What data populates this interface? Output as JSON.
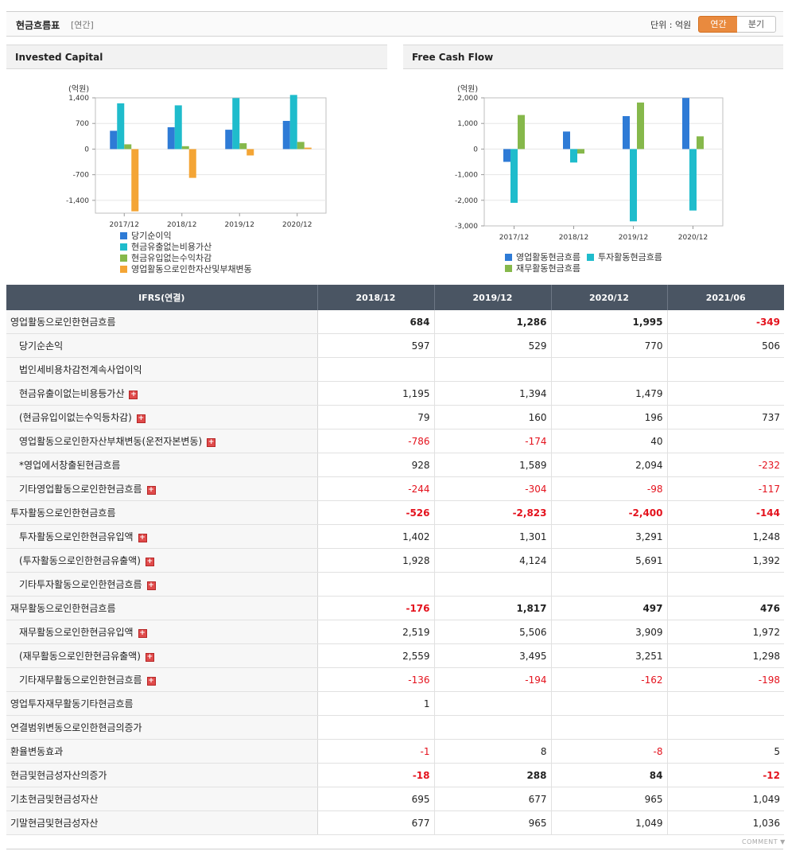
{
  "header": {
    "title": "현금흐름표",
    "subtitle": "[연간]",
    "unit": "단위 : 억원",
    "btn_annual": "연간",
    "btn_quarter": "분기"
  },
  "colors": {
    "blue": "#2e7bd6",
    "teal": "#1fbccc",
    "green": "#86b84b",
    "orange": "#f4a535",
    "negative": "#e4121d",
    "accent": "#e98a3e"
  },
  "charts": {
    "invested": {
      "title": "Invested Capital",
      "unit_label": "(억원)"
    },
    "fcf": {
      "title": "Free Cash Flow",
      "unit_label": "(억원)"
    }
  },
  "chart_data": [
    {
      "type": "bar",
      "title": "Invested Capital",
      "ylabel": "(억원)",
      "categories": [
        "2017/12",
        "2018/12",
        "2019/12",
        "2020/12"
      ],
      "ylim": [
        -1750,
        1400
      ],
      "yticks": [
        1400,
        700,
        0,
        -700,
        -1400
      ],
      "ytick_labels": [
        "1,400",
        "700",
        "0",
        "-700",
        "-1,400"
      ],
      "legend": "bottom",
      "grid": true,
      "series": [
        {
          "name": "당기순이익",
          "color": "#2e7bd6",
          "values": [
            500,
            597,
            529,
            770
          ]
        },
        {
          "name": "현금유출없는비용가산",
          "color": "#1fbccc",
          "values": [
            1250,
            1195,
            1394,
            1479
          ]
        },
        {
          "name": "현금유입없는수익차감",
          "color": "#86b84b",
          "values": [
            130,
            79,
            160,
            196
          ]
        },
        {
          "name": "영업활동으로인한자산및부채변동",
          "color": "#f4a535",
          "values": [
            -1700,
            -786,
            -174,
            40
          ]
        }
      ]
    },
    {
      "type": "bar",
      "title": "Free Cash Flow",
      "ylabel": "(억원)",
      "categories": [
        "2017/12",
        "2018/12",
        "2019/12",
        "2020/12"
      ],
      "ylim": [
        -3000,
        2000
      ],
      "yticks": [
        2000,
        1000,
        0,
        -1000,
        -2000,
        -3000
      ],
      "ytick_labels": [
        "2,000",
        "1,000",
        "0",
        "-1,000",
        "-2,000",
        "-3,000"
      ],
      "legend": "bottom",
      "grid": true,
      "series": [
        {
          "name": "영업활동현금흐름",
          "color": "#2e7bd6",
          "values": [
            -500,
            684,
            1286,
            1995
          ]
        },
        {
          "name": "투자활동현금흐름",
          "color": "#1fbccc",
          "values": [
            -2100,
            -526,
            -2823,
            -2400
          ]
        },
        {
          "name": "재무활동현금흐름",
          "color": "#86b84b",
          "values": [
            1330,
            -176,
            1817,
            497
          ]
        }
      ]
    }
  ],
  "table": {
    "corner": "IFRS(연결)",
    "columns": [
      "2018/12",
      "2019/12",
      "2020/12",
      "2021/06"
    ],
    "rows": [
      {
        "label": "영업활동으로인한현금흐름",
        "level": 0,
        "bold": true,
        "sec": true,
        "values": [
          "684",
          "1,286",
          "1,995",
          "-349"
        ]
      },
      {
        "label": "당기순손익",
        "level": 1,
        "values": [
          "597",
          "529",
          "770",
          "506"
        ]
      },
      {
        "label": "법인세비용차감전계속사업이익",
        "level": 1,
        "values": [
          "",
          "",
          "",
          ""
        ]
      },
      {
        "label": "현금유출이없는비용등가산",
        "level": 1,
        "plus": true,
        "values": [
          "1,195",
          "1,394",
          "1,479",
          ""
        ]
      },
      {
        "label": "(현금유입이없는수익등차감)",
        "level": 1,
        "plus": true,
        "values": [
          "79",
          "160",
          "196",
          "737"
        ]
      },
      {
        "label": "영업활동으로인한자산부채변동(운전자본변동)",
        "level": 1,
        "plus": true,
        "values": [
          "-786",
          "-174",
          "40",
          ""
        ]
      },
      {
        "label": "*영업에서창출된현금흐름",
        "level": 1,
        "values": [
          "928",
          "1,589",
          "2,094",
          "-232"
        ]
      },
      {
        "label": "기타영업활동으로인한현금흐름",
        "level": 1,
        "plus": true,
        "values": [
          "-244",
          "-304",
          "-98",
          "-117"
        ]
      },
      {
        "label": "투자활동으로인한현금흐름",
        "level": 0,
        "bold": true,
        "sec": true,
        "values": [
          "-526",
          "-2,823",
          "-2,400",
          "-144"
        ]
      },
      {
        "label": "투자활동으로인한현금유입액",
        "level": 1,
        "plus": true,
        "values": [
          "1,402",
          "1,301",
          "3,291",
          "1,248"
        ]
      },
      {
        "label": "(투자활동으로인한현금유출액)",
        "level": 1,
        "plus": true,
        "values": [
          "1,928",
          "4,124",
          "5,691",
          "1,392"
        ]
      },
      {
        "label": "기타투자활동으로인한현금흐름",
        "level": 1,
        "plus": true,
        "values": [
          "",
          "",
          "",
          ""
        ]
      },
      {
        "label": "재무활동으로인한현금흐름",
        "level": 0,
        "bold": true,
        "sec": true,
        "values": [
          "-176",
          "1,817",
          "497",
          "476"
        ]
      },
      {
        "label": "재무활동으로인한현금유입액",
        "level": 1,
        "plus": true,
        "values": [
          "2,519",
          "5,506",
          "3,909",
          "1,972"
        ]
      },
      {
        "label": "(재무활동으로인한현금유출액)",
        "level": 1,
        "plus": true,
        "values": [
          "2,559",
          "3,495",
          "3,251",
          "1,298"
        ]
      },
      {
        "label": "기타재무활동으로인한현금흐름",
        "level": 1,
        "plus": true,
        "values": [
          "-136",
          "-194",
          "-162",
          "-198"
        ]
      },
      {
        "label": "영업투자재무활동기타현금흐름",
        "level": 0,
        "sec": true,
        "values": [
          "1",
          "",
          "",
          ""
        ]
      },
      {
        "label": "연결범위변동으로인한현금의증가",
        "level": 0,
        "values": [
          "",
          "",
          "",
          ""
        ]
      },
      {
        "label": "환율변동효과",
        "level": 0,
        "values": [
          "-1",
          "8",
          "-8",
          "5"
        ]
      },
      {
        "label": "현금및현금성자산의증가",
        "level": 0,
        "bold": true,
        "values": [
          "-18",
          "288",
          "84",
          "-12"
        ]
      },
      {
        "label": "기초현금및현금성자산",
        "level": 0,
        "values": [
          "695",
          "677",
          "965",
          "1,049"
        ]
      },
      {
        "label": "기말현금및현금성자산",
        "level": 0,
        "values": [
          "677",
          "965",
          "1,049",
          "1,036"
        ]
      }
    ]
  },
  "footer": {
    "comment": "COMMENT ▼"
  }
}
